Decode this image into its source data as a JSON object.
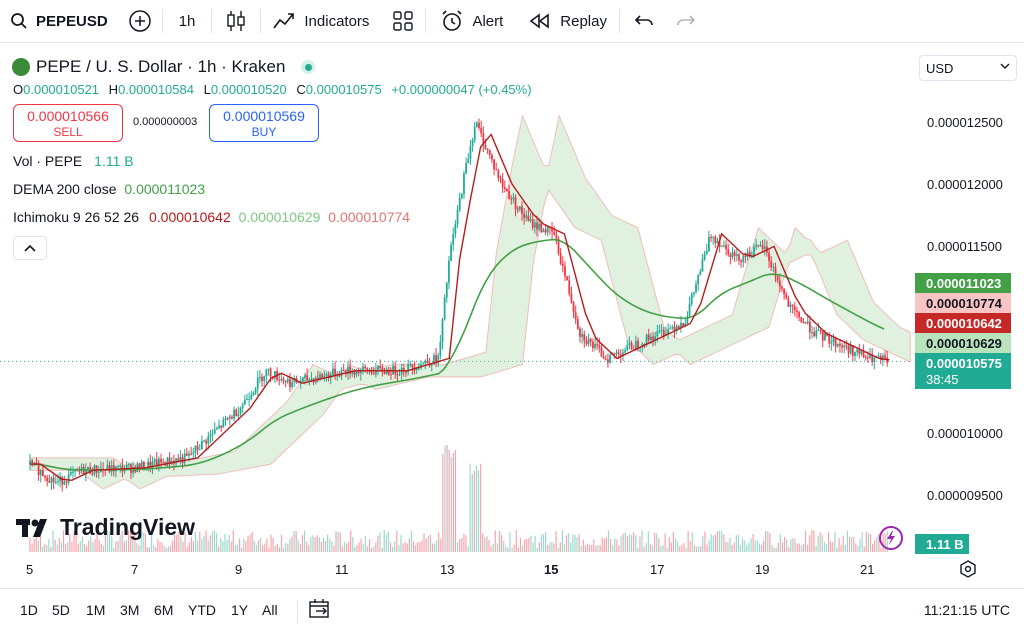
{
  "toolbar": {
    "symbol": "PEPEUSD",
    "interval": "1h",
    "indicators_label": "Indicators",
    "alert_label": "Alert",
    "replay_label": "Replay"
  },
  "legend": {
    "title": "PEPE / U. S. Dollar · 1h · Kraken",
    "ohlc": {
      "o_key": "O",
      "o_val": "0.000010521",
      "h_key": "H",
      "h_val": "0.000010584",
      "l_key": "L",
      "l_val": "0.000010520",
      "c_key": "C",
      "c_val": "0.000010575",
      "change": "+0.000000047 (+0.45%)"
    },
    "sell_price": "0.000010566",
    "sell_label": "SELL",
    "spread": "0.000000003",
    "buy_price": "0.000010569",
    "buy_label": "BUY",
    "vol_name": "Vol · PEPE",
    "vol_value": "1.11 B",
    "dema_name": "DEMA 200 close",
    "dema_value": "0.000011023",
    "ichimoku_name": "Ichimoku 9 26 52 26",
    "ichimoku_v1": "0.000010642",
    "ichimoku_v2": "0.000010629",
    "ichimoku_v3": "0.000010774"
  },
  "currency": "USD",
  "price_axis": {
    "ticks": [
      "0.000012500",
      "0.000012000",
      "0.000011500",
      "0.000010000",
      "0.000009500"
    ],
    "tags": {
      "dema": "0.000011023",
      "span_b": "0.000010774",
      "base": "0.000010642",
      "conv": "0.000010629",
      "last": "0.000010575",
      "countdown": "38:45",
      "volume": "1.11 B"
    }
  },
  "time_axis": [
    "5",
    "7",
    "9",
    "11",
    "13",
    "15",
    "17",
    "19",
    "21"
  ],
  "ranges": [
    "1D",
    "5D",
    "1M",
    "3M",
    "6M",
    "YTD",
    "1Y",
    "All"
  ],
  "clock": "11:21:15 UTC",
  "brand": "TradingView",
  "colors": {
    "up": "#22ab94",
    "down": "#f23645",
    "dema": "#43a047",
    "base_line": "#b71c1c",
    "cloud_green": "#a5d6a7",
    "cloud_red": "#ef9a9a"
  },
  "chart_data": {
    "type": "candlestick",
    "x_labels": [
      "5",
      "7",
      "9",
      "11",
      "13",
      "15",
      "17",
      "19",
      "21"
    ],
    "close_path": [
      [
        5,
        9.75e-06
      ],
      [
        5.5,
        9.6e-06
      ],
      [
        6,
        9.7e-06
      ],
      [
        7,
        9.72e-06
      ],
      [
        8,
        9.8e-06
      ],
      [
        8.5,
        1e-05
      ],
      [
        9,
        1.02e-05
      ],
      [
        9.5,
        1.05e-05
      ],
      [
        10,
        1.04e-05
      ],
      [
        11,
        1.05e-05
      ],
      [
        12,
        1.05e-05
      ],
      [
        12.8,
        1.06e-05
      ],
      [
        13,
        1.14e-05
      ],
      [
        13.3,
        1.21e-05
      ],
      [
        13.5,
        1.25e-05
      ],
      [
        14,
        1.2e-05
      ],
      [
        14.5,
        1.17e-05
      ],
      [
        15,
        1.16e-05
      ],
      [
        15.5,
        1.08e-05
      ],
      [
        16,
        1.06e-05
      ],
      [
        17,
        1.08e-05
      ],
      [
        17.5,
        1.09e-05
      ],
      [
        18,
        1.16e-05
      ],
      [
        18.5,
        1.14e-05
      ],
      [
        19,
        1.15e-05
      ],
      [
        19.5,
        1.1e-05
      ],
      [
        20,
        1.08e-05
      ],
      [
        21,
        1.06e-05
      ],
      [
        21.4,
        1.05756e-05
      ]
    ],
    "ylim": [
      9.3e-06,
      1.27e-05
    ]
  }
}
